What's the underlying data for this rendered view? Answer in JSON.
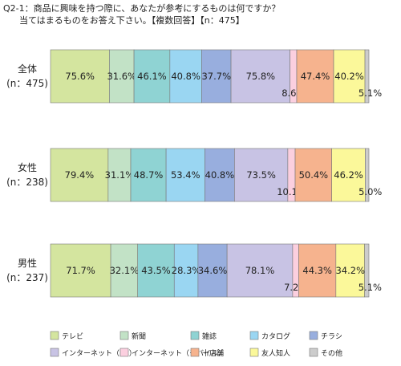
{
  "title_lines": [
    "Q2-1：商品に興味を持つ際に、あなたが参考にするものは何ですか？",
    "当てはまるものをお答え下さい。【複数回答】【n：475】"
  ],
  "chart_data": {
    "type": "bar",
    "orientation": "horizontal",
    "stacked": true,
    "categories": [
      {
        "label": "全体",
        "n": "(n：475)"
      },
      {
        "label": "女性",
        "n": "(n：238)"
      },
      {
        "label": "男性",
        "n": "(n：237)"
      }
    ],
    "series": [
      {
        "name": "テレビ",
        "color": "#d4e59f",
        "values": [
          75.6,
          79.4,
          71.7
        ],
        "labels": [
          "75.6%",
          "79.4%",
          "71.7%"
        ]
      },
      {
        "name": "新聞",
        "color": "#c2e2c6",
        "values": [
          31.6,
          31.1,
          32.1
        ],
        "labels": [
          "31.6%",
          "31.1%",
          "32.1%"
        ]
      },
      {
        "name": "雑誌",
        "color": "#8fd3d3",
        "values": [
          46.1,
          48.7,
          43.5
        ],
        "labels": [
          "46.1%",
          "48.7%",
          "43.5%"
        ]
      },
      {
        "name": "カタログ",
        "color": "#9ad6f2",
        "values": [
          40.8,
          53.4,
          28.3
        ],
        "labels": [
          "40.8%",
          "53.4%",
          "28.3%"
        ]
      },
      {
        "name": "チラシ",
        "color": "#98aede",
        "values": [
          37.7,
          40.8,
          34.6
        ],
        "labels": [
          "37.7%",
          "40.8%",
          "34.6%"
        ]
      },
      {
        "name": "インターネット（PC）",
        "color": "#c8c3e4",
        "values": [
          75.8,
          73.5,
          78.1
        ],
        "labels": [
          "75.8%",
          "73.5%",
          "78.1%"
        ]
      },
      {
        "name": "インターネット（モバイル）",
        "color": "#fbcfdf",
        "values": [
          8.6,
          10.1,
          7.2
        ],
        "labels": [
          "8.6%",
          "10.1%",
          "7.2%"
        ]
      },
      {
        "name": "十店舗",
        "color": "#f6b38e",
        "values": [
          47.4,
          50.4,
          44.3
        ],
        "labels": [
          "47.4%",
          "50.4%",
          "44.3%"
        ]
      },
      {
        "name": "友人知人",
        "color": "#fbf89a",
        "values": [
          40.2,
          46.2,
          34.2
        ],
        "labels": [
          "40.2%",
          "46.2%",
          "34.2%"
        ]
      },
      {
        "name": "その他",
        "color": "#cccccc",
        "values": [
          5.1,
          5.0,
          5.1
        ],
        "labels": [
          "5.1%",
          "5.0%",
          "5.1%"
        ]
      }
    ],
    "legend_position": "bottom",
    "grid": false
  }
}
